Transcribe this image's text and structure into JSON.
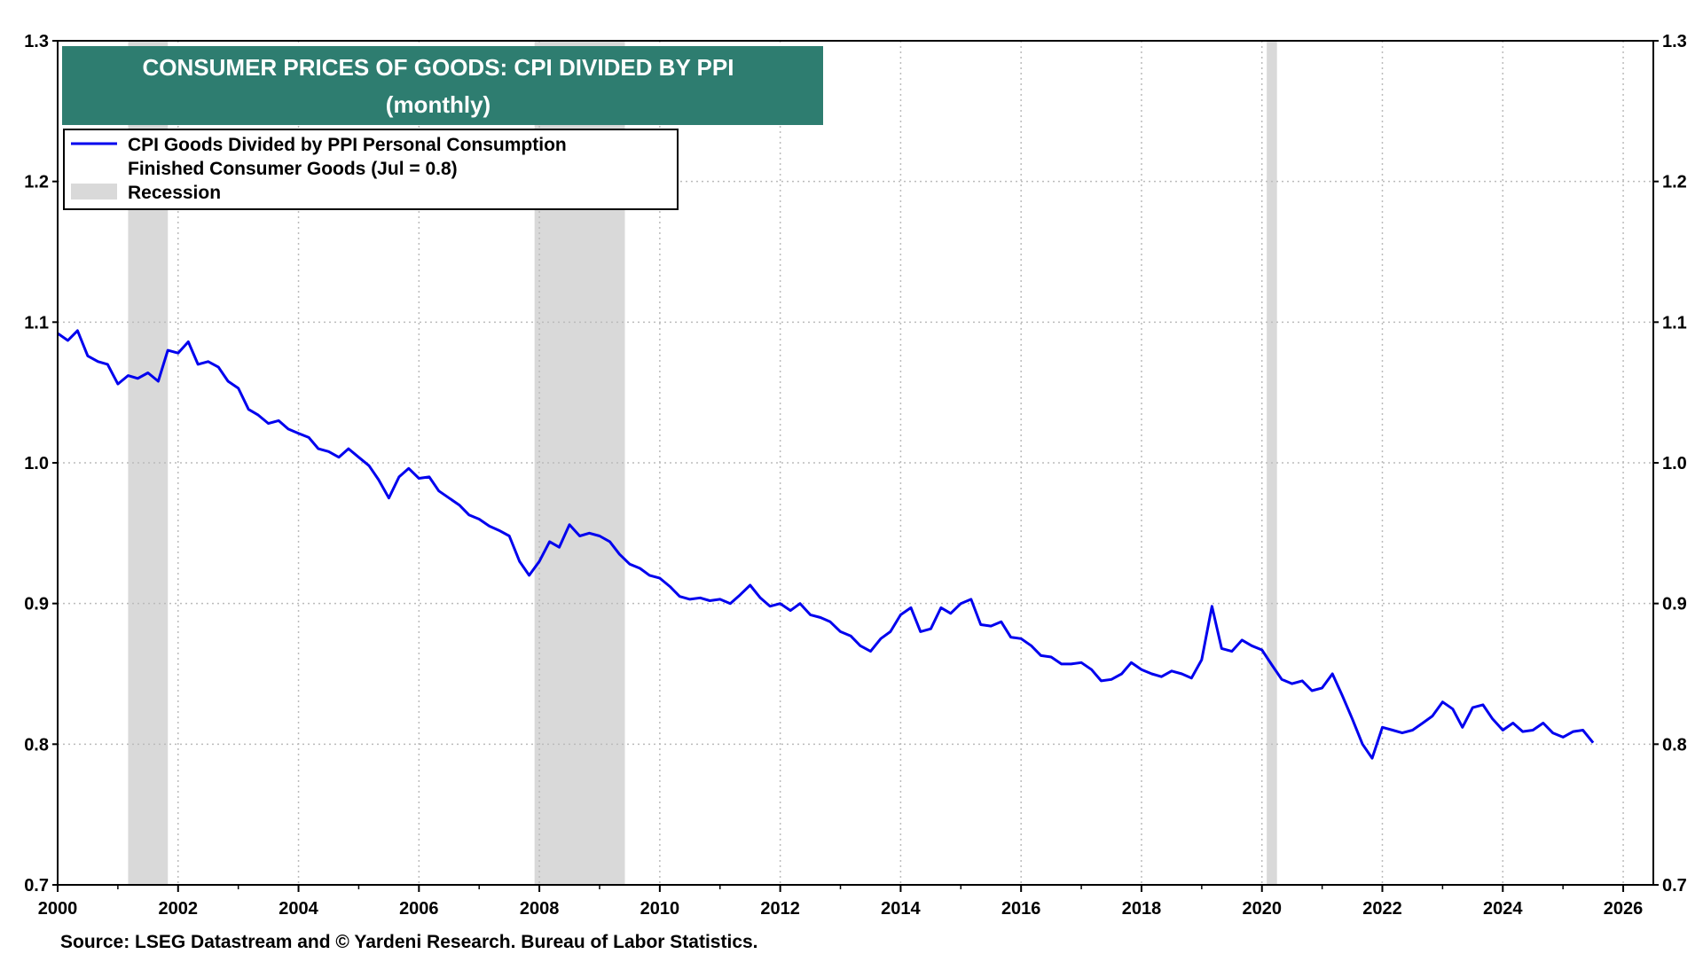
{
  "chart_data": {
    "type": "line",
    "title_line1": "CONSUMER PRICES OF GOODS: CPI DIVIDED BY PPI",
    "title_line2": "(monthly)",
    "legend": {
      "series_line1": "CPI Goods Divided by PPI Personal Consumption",
      "series_line2": "Finished Consumer Goods (Jul = 0.8)",
      "recession_label": "Recession",
      "placement": "top-left"
    },
    "source": "Source: LSEG Datastream and © Yardeni Research. Bureau of Labor Statistics.",
    "xlim": [
      2000,
      2026.5
    ],
    "ylim": [
      0.7,
      1.3
    ],
    "x_ticks": [
      "2000",
      "2002",
      "2004",
      "2006",
      "2008",
      "2010",
      "2012",
      "2014",
      "2016",
      "2018",
      "2020",
      "2022",
      "2024",
      "2026"
    ],
    "y_ticks": [
      "0.7",
      "0.8",
      "0.9",
      "1.0",
      "1.1",
      "1.2",
      "1.3"
    ],
    "grid": true,
    "colors": {
      "line": "#0000ee",
      "recession": "#d9d9d9",
      "title_bg": "#2e7d70",
      "title_text": "#ffffff",
      "grid": "#bbbbbb"
    },
    "recessions": [
      {
        "start": 2001.17,
        "end": 2001.83
      },
      {
        "start": 2007.92,
        "end": 2009.42
      },
      {
        "start": 2020.08,
        "end": 2020.25
      }
    ],
    "series": [
      {
        "x": [
          2000.0,
          2000.17,
          2000.33,
          2000.5,
          2000.67,
          2000.83,
          2001.0,
          2001.17,
          2001.33,
          2001.5,
          2001.67,
          2001.83,
          2002.0,
          2002.17,
          2002.33,
          2002.5,
          2002.67,
          2002.83,
          2003.0,
          2003.17,
          2003.33,
          2003.5,
          2003.67,
          2003.83,
          2004.0,
          2004.17,
          2004.33,
          2004.5,
          2004.67,
          2004.83,
          2005.0,
          2005.17,
          2005.33,
          2005.5,
          2005.67,
          2005.83,
          2006.0,
          2006.17,
          2006.33,
          2006.5,
          2006.67,
          2006.83,
          2007.0,
          2007.17,
          2007.33,
          2007.5,
          2007.67,
          2007.83,
          2008.0,
          2008.17,
          2008.33,
          2008.5,
          2008.67,
          2008.83,
          2009.0,
          2009.17,
          2009.33,
          2009.5,
          2009.67,
          2009.83,
          2010.0,
          2010.17,
          2010.33,
          2010.5,
          2010.67,
          2010.83,
          2011.0,
          2011.17,
          2011.33,
          2011.5,
          2011.67,
          2011.83,
          2012.0,
          2012.17,
          2012.33,
          2012.5,
          2012.67,
          2012.83,
          2013.0,
          2013.17,
          2013.33,
          2013.5,
          2013.67,
          2013.83,
          2014.0,
          2014.17,
          2014.33,
          2014.5,
          2014.67,
          2014.83,
          2015.0,
          2015.17,
          2015.33,
          2015.5,
          2015.67,
          2015.83,
          2016.0,
          2016.17,
          2016.33,
          2016.5,
          2016.67,
          2016.83,
          2017.0,
          2017.17,
          2017.33,
          2017.5,
          2017.67,
          2017.83,
          2018.0,
          2018.17,
          2018.33,
          2018.5,
          2018.67,
          2018.83,
          2019.0,
          2019.17,
          2019.33,
          2019.5,
          2019.67,
          2019.83,
          2020.0,
          2020.17,
          2020.33,
          2020.5,
          2020.67,
          2020.83,
          2021.0,
          2021.17,
          2021.33,
          2021.5,
          2021.67,
          2021.83,
          2022.0,
          2022.17,
          2022.33,
          2022.5,
          2022.67,
          2022.83,
          2023.0,
          2023.17,
          2023.33,
          2023.5,
          2023.67,
          2023.83,
          2024.0,
          2024.17,
          2024.33,
          2024.5,
          2024.67,
          2024.83,
          2025.0,
          2025.17,
          2025.33,
          2025.5
        ],
        "values": [
          1.092,
          1.087,
          1.094,
          1.076,
          1.072,
          1.07,
          1.056,
          1.062,
          1.06,
          1.064,
          1.058,
          1.08,
          1.078,
          1.086,
          1.07,
          1.072,
          1.068,
          1.058,
          1.053,
          1.038,
          1.034,
          1.028,
          1.03,
          1.024,
          1.021,
          1.018,
          1.01,
          1.008,
          1.004,
          1.01,
          1.004,
          0.998,
          0.988,
          0.975,
          0.99,
          0.996,
          0.989,
          0.99,
          0.98,
          0.975,
          0.97,
          0.963,
          0.96,
          0.955,
          0.952,
          0.948,
          0.93,
          0.92,
          0.93,
          0.944,
          0.94,
          0.956,
          0.948,
          0.95,
          0.948,
          0.944,
          0.935,
          0.928,
          0.925,
          0.92,
          0.918,
          0.912,
          0.905,
          0.903,
          0.904,
          0.902,
          0.903,
          0.9,
          0.906,
          0.913,
          0.904,
          0.898,
          0.9,
          0.895,
          0.9,
          0.892,
          0.89,
          0.887,
          0.88,
          0.877,
          0.87,
          0.866,
          0.875,
          0.88,
          0.892,
          0.897,
          0.88,
          0.882,
          0.897,
          0.893,
          0.9,
          0.903,
          0.885,
          0.884,
          0.887,
          0.876,
          0.875,
          0.87,
          0.863,
          0.862,
          0.857,
          0.857,
          0.858,
          0.853,
          0.845,
          0.846,
          0.85,
          0.858,
          0.853,
          0.85,
          0.848,
          0.852,
          0.85,
          0.847,
          0.86,
          0.898,
          0.868,
          0.866,
          0.874,
          0.87,
          0.867,
          0.856,
          0.846,
          0.843,
          0.845,
          0.838,
          0.84,
          0.85,
          0.835,
          0.818,
          0.8,
          0.79,
          0.812,
          0.81,
          0.808,
          0.81,
          0.815,
          0.82,
          0.83,
          0.825,
          0.812,
          0.826,
          0.828,
          0.818,
          0.81,
          0.815,
          0.809,
          0.81,
          0.815,
          0.808,
          0.805,
          0.809,
          0.81,
          0.801
        ]
      }
    ]
  }
}
